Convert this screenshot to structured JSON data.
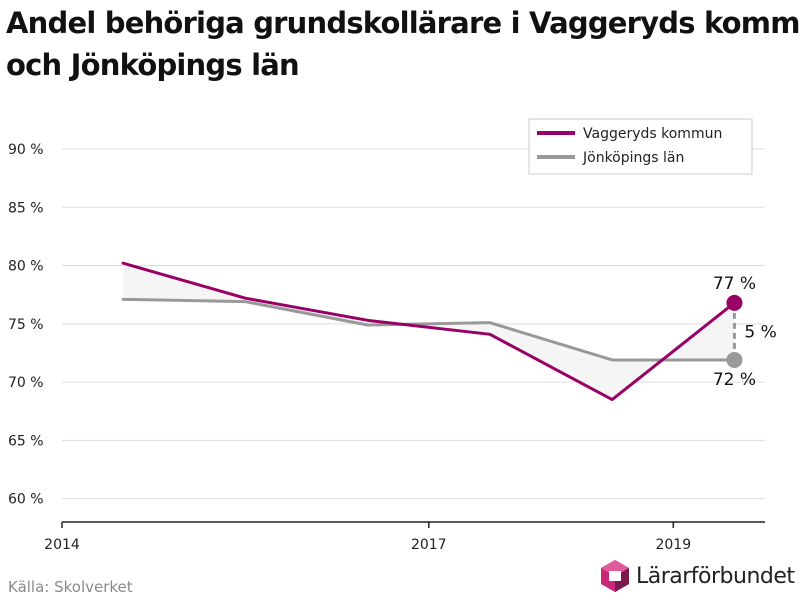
{
  "title_lines": [
    "Andel behöriga grundskollärare i Vaggeryds kommun",
    "och Jönköpings län"
  ],
  "source": "Källa: Skolverket",
  "logo_text": "Lärarförbundet",
  "colors": {
    "vaggeryd": "#990066",
    "lan": "#999999",
    "gap_fill": "#f5f5f5",
    "grid": "#dddddd",
    "axis": "#222222",
    "logo_magenta": "#c8287a",
    "logo_dark": "#7a1a4a"
  },
  "chart_data": {
    "type": "line",
    "x_ticks": [
      {
        "value": 2014,
        "label": "2014"
      },
      {
        "value": 2017,
        "label": "2017"
      },
      {
        "value": 2019,
        "label": "2019"
      }
    ],
    "y_ticks": [
      {
        "value": 60,
        "label": "60 %"
      },
      {
        "value": 65,
        "label": "65 %"
      },
      {
        "value": 70,
        "label": "70 %"
      },
      {
        "value": 75,
        "label": "75 %"
      },
      {
        "value": 80,
        "label": "80 %"
      },
      {
        "value": 85,
        "label": "85 %"
      },
      {
        "value": 90,
        "label": "90 %"
      }
    ],
    "xlim": [
      2014,
      2019.75
    ],
    "ylim": [
      58,
      93
    ],
    "grid": true,
    "legend_position": "top-right",
    "gap_shading": true,
    "series": [
      {
        "name": "Vaggeryds kommun",
        "color_key": "vaggeryd",
        "x": [
          2014.5,
          2015.5,
          2016.5,
          2017.5,
          2018.5,
          2019.5
        ],
        "y": [
          80.2,
          77.2,
          75.3,
          74.1,
          68.5,
          76.8
        ]
      },
      {
        "name": "Jönköpings län",
        "color_key": "lan",
        "x": [
          2014.5,
          2015.5,
          2016.5,
          2017.5,
          2018.5,
          2019.5
        ],
        "y": [
          77.1,
          76.9,
          74.9,
          75.1,
          71.9,
          71.9
        ]
      }
    ],
    "annotations": {
      "end_label_top": "77 %",
      "end_label_bottom": "72 %",
      "difference": "5 %"
    }
  }
}
